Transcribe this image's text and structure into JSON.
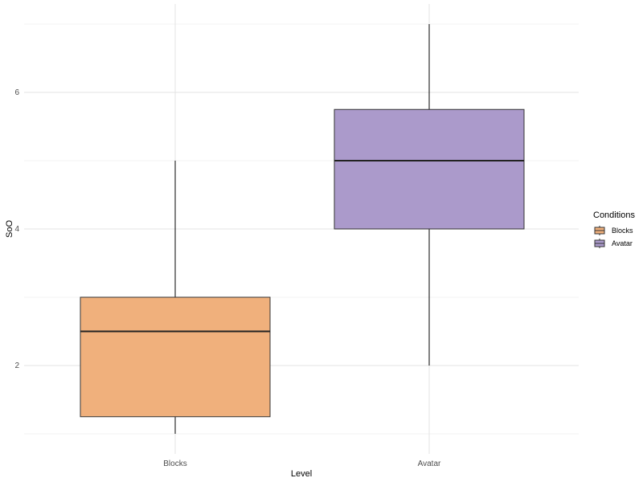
{
  "chart_data": {
    "type": "boxplot",
    "title": "",
    "xlabel": "Level",
    "ylabel": "SoO",
    "categories": [
      "Blocks",
      "Avatar"
    ],
    "ylim": [
      0.9,
      7.1
    ],
    "yticks": [
      2,
      4,
      6
    ],
    "grid": true,
    "legend": {
      "title": "Conditions",
      "position": "right",
      "entries": [
        {
          "label": "Blocks",
          "color": "#f0b07c"
        },
        {
          "label": "Avatar",
          "color": "#ab9acb"
        }
      ]
    },
    "boxes": [
      {
        "category": "Blocks",
        "min": 1.0,
        "q1": 1.25,
        "median": 2.5,
        "q3": 3.0,
        "max": 5.0,
        "color": "#f0b07c"
      },
      {
        "category": "Avatar",
        "min": 2.0,
        "q1": 4.0,
        "median": 5.0,
        "q3": 5.75,
        "max": 7.0,
        "color": "#ab9acb"
      }
    ]
  }
}
